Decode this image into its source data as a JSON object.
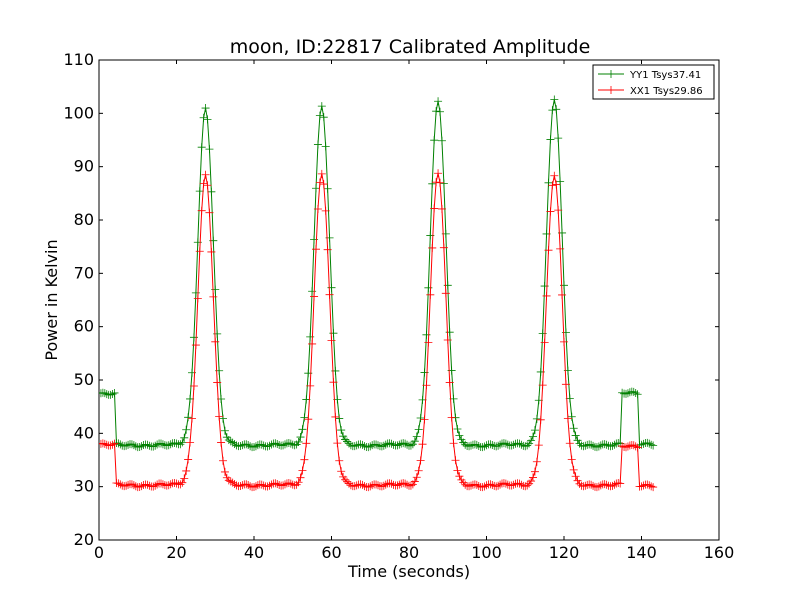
{
  "chart_data": {
    "type": "line",
    "title": "moon, ID:22817 Calibrated Amplitude",
    "xlabel": "Time (seconds)",
    "ylabel": "Power in Kelvin",
    "xlim": [
      0,
      160
    ],
    "ylim": [
      20,
      110
    ],
    "xticks": [
      0,
      20,
      40,
      60,
      80,
      100,
      120,
      140,
      160
    ],
    "yticks": [
      20,
      30,
      40,
      50,
      60,
      70,
      80,
      90,
      100,
      110
    ],
    "grid": false,
    "legend_position": "top-right",
    "marker": "plus",
    "sample_interval_s": 0.5,
    "series": [
      {
        "name": "YY1 Tsys37.41",
        "color": "#008000",
        "baseline": 37.8,
        "segments": [
          {
            "start": 0.5,
            "end": 4.0,
            "level": 47.3
          },
          {
            "start": 4.5,
            "end": 134.5,
            "level": 37.8
          },
          {
            "start": 135.0,
            "end": 139.0,
            "level": 47.5
          },
          {
            "start": 139.5,
            "end": 143.0,
            "level": 38.1
          }
        ],
        "peaks": [
          {
            "center": 27.5,
            "peak": 101.0,
            "width": 2.0
          },
          {
            "center": 57.5,
            "peak": 101.5,
            "width": 2.0
          },
          {
            "center": 87.5,
            "peak": 102.5,
            "width": 2.0
          },
          {
            "center": 117.5,
            "peak": 102.8,
            "width": 2.0
          }
        ]
      },
      {
        "name": "XX1 Tsys29.86",
        "color": "#ff0000",
        "baseline": 30.3,
        "segments": [
          {
            "start": 0.5,
            "end": 4.0,
            "level": 37.8
          },
          {
            "start": 4.5,
            "end": 134.5,
            "level": 30.3
          },
          {
            "start": 135.0,
            "end": 139.0,
            "level": 37.5
          },
          {
            "start": 139.5,
            "end": 143.0,
            "level": 30.3
          }
        ],
        "peaks": [
          {
            "center": 27.5,
            "peak": 88.5,
            "width": 2.0
          },
          {
            "center": 57.5,
            "peak": 88.8,
            "width": 2.0
          },
          {
            "center": 87.5,
            "peak": 89.0,
            "width": 2.0
          },
          {
            "center": 117.5,
            "peak": 88.5,
            "width": 2.0
          }
        ]
      }
    ]
  }
}
